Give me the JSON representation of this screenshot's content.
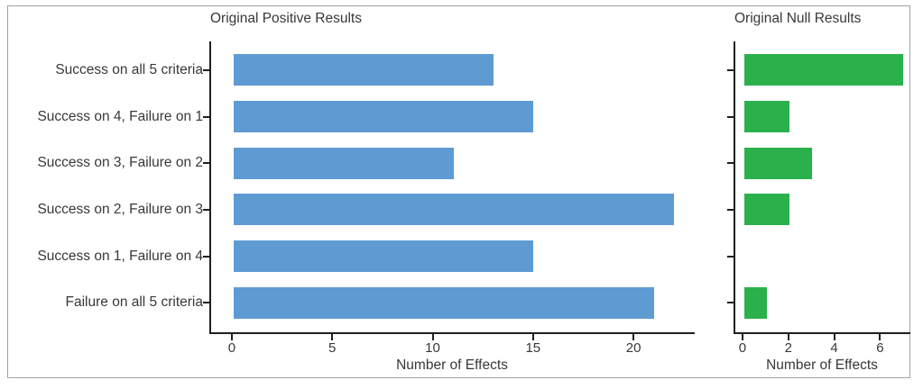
{
  "chart_data": [
    {
      "type": "bar",
      "orientation": "horizontal",
      "title": "Original Positive Results",
      "categories": [
        "Success on all 5 criteria",
        "Success on 4, Failure on 1",
        "Success on 3, Failure on 2",
        "Success on 2, Failure on 3",
        "Success on 1, Failure on 4",
        "Failure on all 5 criteria"
      ],
      "values": [
        13,
        15,
        11,
        22,
        15,
        21
      ],
      "xlabel": "Number of Effects",
      "xticks": [
        0,
        5,
        10,
        15,
        20
      ],
      "xlim": [
        -1.12,
        23.05
      ],
      "bar_color": "#5E9BD3",
      "legend": "none",
      "grid": false
    },
    {
      "type": "bar",
      "orientation": "horizontal",
      "title": "Original Null Results",
      "categories": [
        "Success on all 5 criteria",
        "Success on 4, Failure on 1",
        "Success on 3, Failure on 2",
        "Success on 2, Failure on 3",
        "Success on 1, Failure on 4",
        "Failure on all 5 criteria"
      ],
      "values": [
        7,
        2,
        3,
        2,
        0,
        1
      ],
      "xlabel": "Number of Effects",
      "xticks": [
        0,
        2,
        4,
        6
      ],
      "xlim": [
        -0.39,
        7.32
      ],
      "bar_color": "#2BB14C",
      "legend": "none",
      "grid": false
    }
  ],
  "colors": {
    "axis_line": "#1f1f1f",
    "text": "#383838",
    "frame_border": "#9da3a8",
    "background": "#ffffff",
    "positive_bar": "#5E9BD3",
    "null_bar": "#2BB14C"
  }
}
